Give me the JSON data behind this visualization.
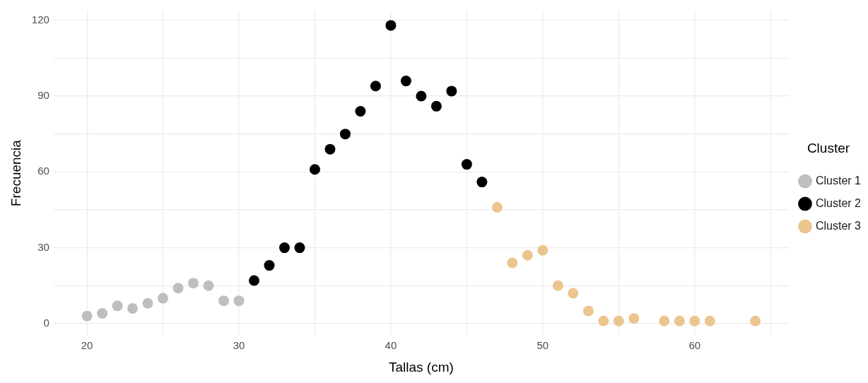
{
  "chart_data": {
    "type": "scatter",
    "xlabel": "Tallas (cm)",
    "ylabel": "Frecuencia",
    "legend_title": "Cluster",
    "series": [
      {
        "name": "Cluster 1",
        "color": "#bebebe",
        "x": [
          20,
          21,
          22,
          23,
          24,
          25,
          26,
          27,
          28,
          29,
          30
        ],
        "values": [
          3,
          4,
          7,
          6,
          8,
          10,
          14,
          16,
          15,
          9,
          9
        ]
      },
      {
        "name": "Cluster 2",
        "color": "#000000",
        "x": [
          31,
          32,
          33,
          34,
          35,
          36,
          37,
          38,
          39,
          40,
          41,
          42,
          43,
          44,
          45,
          46
        ],
        "values": [
          17,
          23,
          30,
          30,
          61,
          69,
          75,
          84,
          94,
          118,
          96,
          90,
          86,
          92,
          63,
          56
        ]
      },
      {
        "name": "Cluster 3",
        "color": "#ecc48e",
        "x": [
          47,
          48,
          49,
          50,
          51,
          52,
          53,
          54,
          55,
          56,
          58,
          59,
          60,
          61,
          64
        ],
        "values": [
          46,
          24,
          27,
          29,
          15,
          12,
          5,
          1,
          1,
          2,
          1,
          1,
          1,
          1,
          1
        ]
      }
    ],
    "xlim": [
      17.8,
      66.2
    ],
    "ylim": [
      -4.85,
      123.85
    ],
    "xticks": [
      20,
      {
        "value": 25,
        "label": null
      },
      30,
      {
        "value": 35,
        "label": null
      },
      40,
      {
        "value": 45,
        "label": null
      },
      50,
      {
        "value": 55,
        "label": null
      },
      60,
      {
        "value": 65,
        "label": null
      }
    ],
    "yticks": [
      0,
      {
        "value": 15,
        "label": null
      },
      30,
      {
        "value": 45,
        "label": null
      },
      60,
      {
        "value": 75,
        "label": null
      },
      90,
      {
        "value": 105,
        "label": null
      },
      120
    ],
    "grid": true,
    "legend": "right",
    "marker": "circle"
  }
}
